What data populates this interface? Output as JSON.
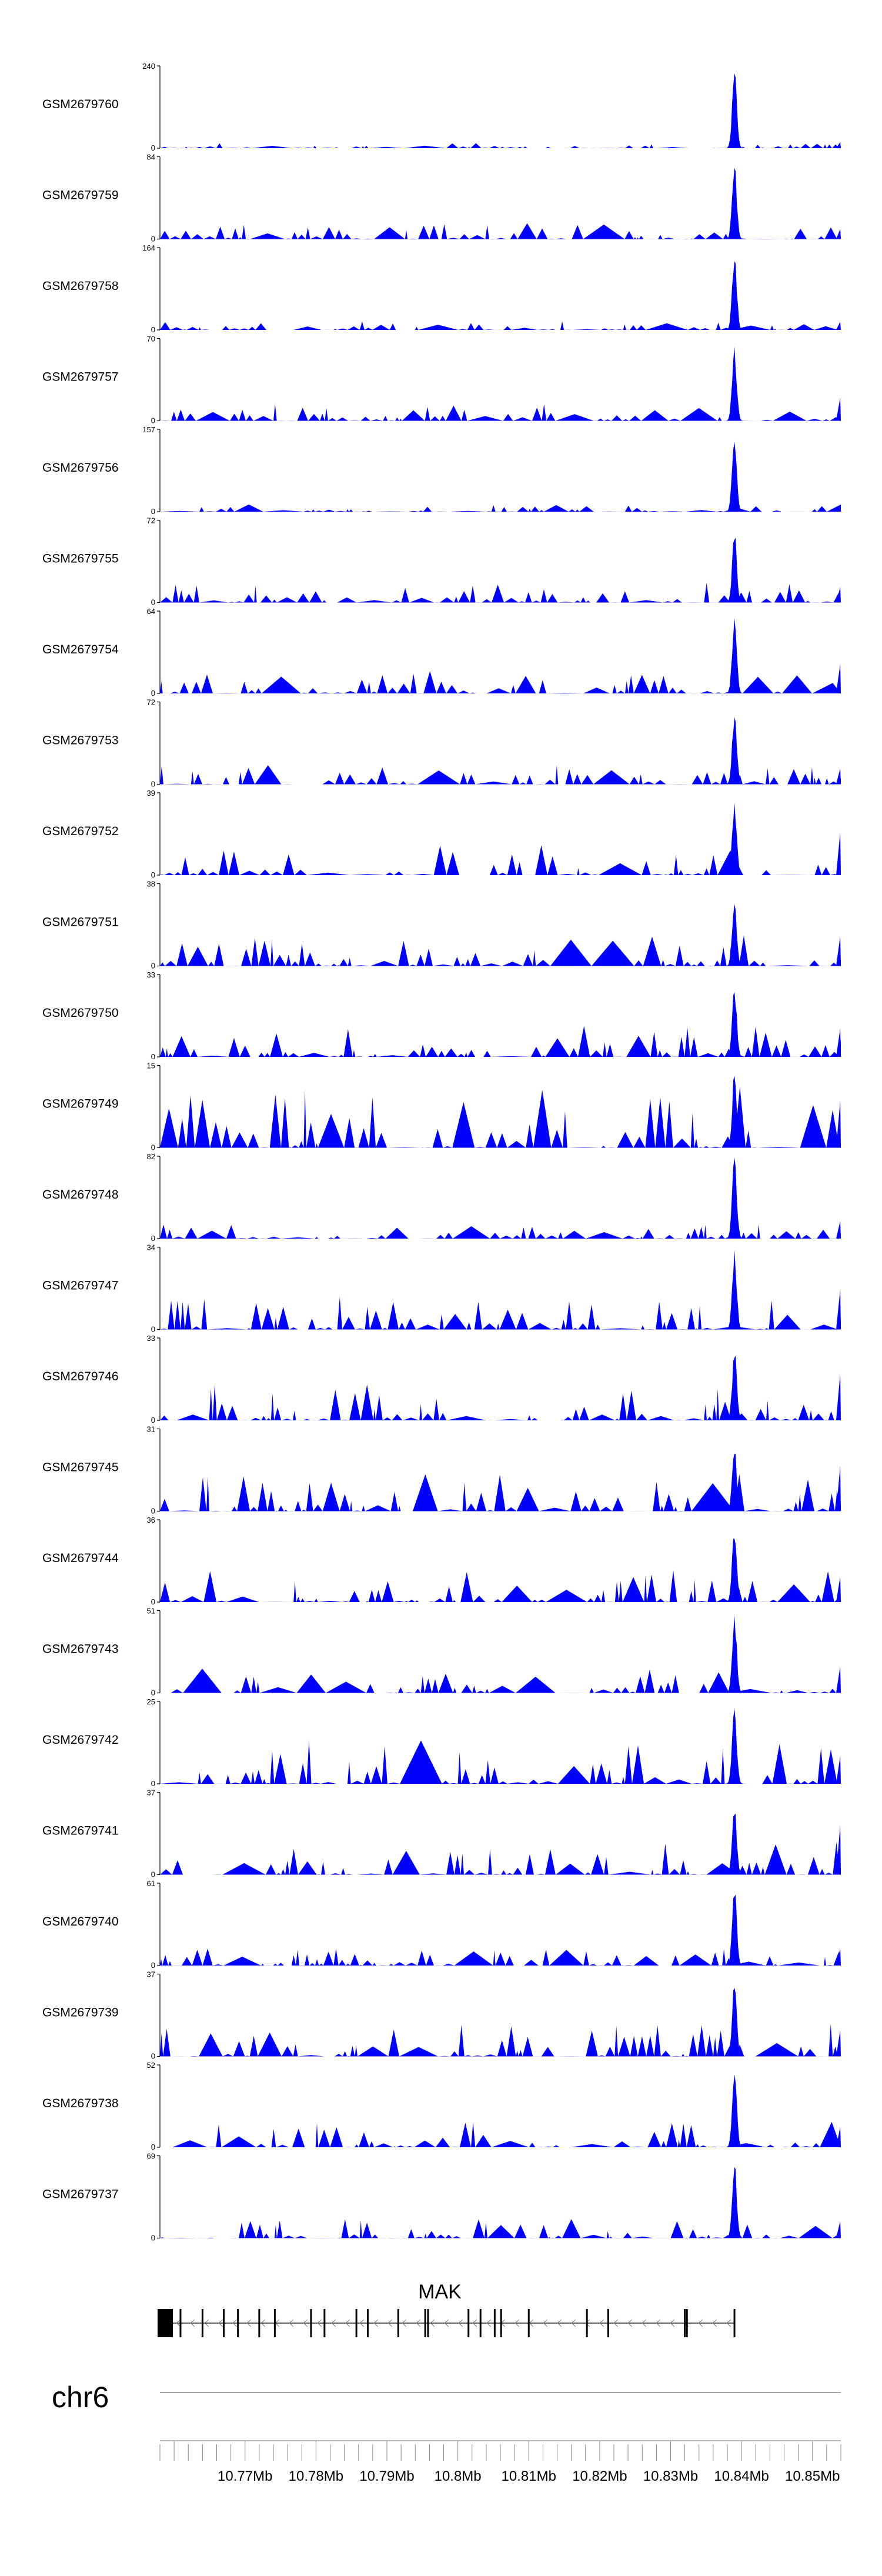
{
  "colors": {
    "signal": "#0000ff",
    "axis": "#000000",
    "gene": "#000000",
    "ruler": "#888888"
  },
  "chart_data": {
    "type": "area",
    "x_unit": "bp",
    "xlim": [
      10758000,
      10854000
    ],
    "peak_position": 10839000,
    "tracks": [
      {
        "name": "GSM2679760",
        "ymax": 240,
        "ytick_min": "0",
        "ytick_max": "240",
        "peak": 1.0,
        "noise": 0.06
      },
      {
        "name": "GSM2679759",
        "ymax": 84,
        "ytick_min": "0",
        "ytick_max": "84",
        "peak": 1.0,
        "noise": 0.18
      },
      {
        "name": "GSM2679758",
        "ymax": 164,
        "ytick_min": "0",
        "ytick_max": "164",
        "peak": 1.0,
        "noise": 0.1
      },
      {
        "name": "GSM2679757",
        "ymax": 70,
        "ytick_min": "0",
        "ytick_max": "70",
        "peak": 0.95,
        "noise": 0.22
      },
      {
        "name": "GSM2679756",
        "ymax": 157,
        "ytick_min": "0",
        "ytick_max": "157",
        "peak": 1.0,
        "noise": 0.08
      },
      {
        "name": "GSM2679755",
        "ymax": 72,
        "ytick_min": "0",
        "ytick_max": "72",
        "peak": 0.9,
        "noise": 0.22
      },
      {
        "name": "GSM2679754",
        "ymax": 64,
        "ytick_min": "0",
        "ytick_max": "64",
        "peak": 1.0,
        "noise": 0.25
      },
      {
        "name": "GSM2679753",
        "ymax": 72,
        "ytick_min": "0",
        "ytick_max": "72",
        "peak": 0.95,
        "noise": 0.22
      },
      {
        "name": "GSM2679752",
        "ymax": 39,
        "ytick_min": "0",
        "ytick_max": "39",
        "peak": 0.95,
        "noise": 0.35
      },
      {
        "name": "GSM2679751",
        "ymax": 38,
        "ytick_min": "0",
        "ytick_max": "38",
        "peak": 0.85,
        "noise": 0.35
      },
      {
        "name": "GSM2679750",
        "ymax": 33,
        "ytick_min": "0",
        "ytick_max": "33",
        "peak": 0.9,
        "noise": 0.35
      },
      {
        "name": "GSM2679749",
        "ymax": 15,
        "ytick_min": "0",
        "ytick_max": "15",
        "peak": 0.95,
        "noise": 0.75
      },
      {
        "name": "GSM2679748",
        "ymax": 82,
        "ytick_min": "0",
        "ytick_max": "82",
        "peak": 1.0,
        "noise": 0.16
      },
      {
        "name": "GSM2679747",
        "ymax": 34,
        "ytick_min": "0",
        "ytick_max": "34",
        "peak": 1.0,
        "noise": 0.38
      },
      {
        "name": "GSM2679746",
        "ymax": 33,
        "ytick_min": "0",
        "ytick_max": "33",
        "peak": 0.9,
        "noise": 0.4
      },
      {
        "name": "GSM2679745",
        "ymax": 31,
        "ytick_min": "0",
        "ytick_max": "31",
        "peak": 0.85,
        "noise": 0.42
      },
      {
        "name": "GSM2679744",
        "ymax": 36,
        "ytick_min": "0",
        "ytick_max": "36",
        "peak": 1.0,
        "noise": 0.35
      },
      {
        "name": "GSM2679743",
        "ymax": 51,
        "ytick_min": "0",
        "ytick_max": "51",
        "peak": 1.0,
        "noise": 0.28
      },
      {
        "name": "GSM2679742",
        "ymax": 25,
        "ytick_min": "0",
        "ytick_max": "25",
        "peak": 1.0,
        "noise": 0.5
      },
      {
        "name": "GSM2679741",
        "ymax": 37,
        "ytick_min": "0",
        "ytick_max": "37",
        "peak": 0.9,
        "noise": 0.4
      },
      {
        "name": "GSM2679740",
        "ymax": 61,
        "ytick_min": "0",
        "ytick_max": "61",
        "peak": 1.0,
        "noise": 0.2
      },
      {
        "name": "GSM2679739",
        "ymax": 37,
        "ytick_min": "0",
        "ytick_max": "37",
        "peak": 1.0,
        "noise": 0.38
      },
      {
        "name": "GSM2679738",
        "ymax": 52,
        "ytick_min": "0",
        "ytick_max": "52",
        "peak": 1.0,
        "noise": 0.28
      },
      {
        "name": "GSM2679737",
        "ymax": 69,
        "ytick_min": "0",
        "ytick_max": "69",
        "peak": 1.0,
        "noise": 0.22
      }
    ],
    "gene": {
      "name": "MAK",
      "strand": "-",
      "start": 10758000,
      "end": 10839000,
      "exons": [
        10758600,
        10760900,
        10764000,
        10767000,
        10769000,
        10772000,
        10774200,
        10779300,
        10781200,
        10785700,
        10787300,
        10791600,
        10795400,
        10795800,
        10801500,
        10803200,
        10805200,
        10806100,
        10810000,
        10818200,
        10821200,
        10832000,
        10832300,
        10839000
      ]
    },
    "chromosome": "chr6",
    "xticks": [
      {
        "pos": 10770000,
        "label": "10.77Mb"
      },
      {
        "pos": 10780000,
        "label": "10.78Mb"
      },
      {
        "pos": 10790000,
        "label": "10.79Mb"
      },
      {
        "pos": 10800000,
        "label": "10.8Mb"
      },
      {
        "pos": 10810000,
        "label": "10.81Mb"
      },
      {
        "pos": 10820000,
        "label": "10.82Mb"
      },
      {
        "pos": 10830000,
        "label": "10.83Mb"
      },
      {
        "pos": 10840000,
        "label": "10.84Mb"
      },
      {
        "pos": 10850000,
        "label": "10.85Mb"
      }
    ]
  }
}
